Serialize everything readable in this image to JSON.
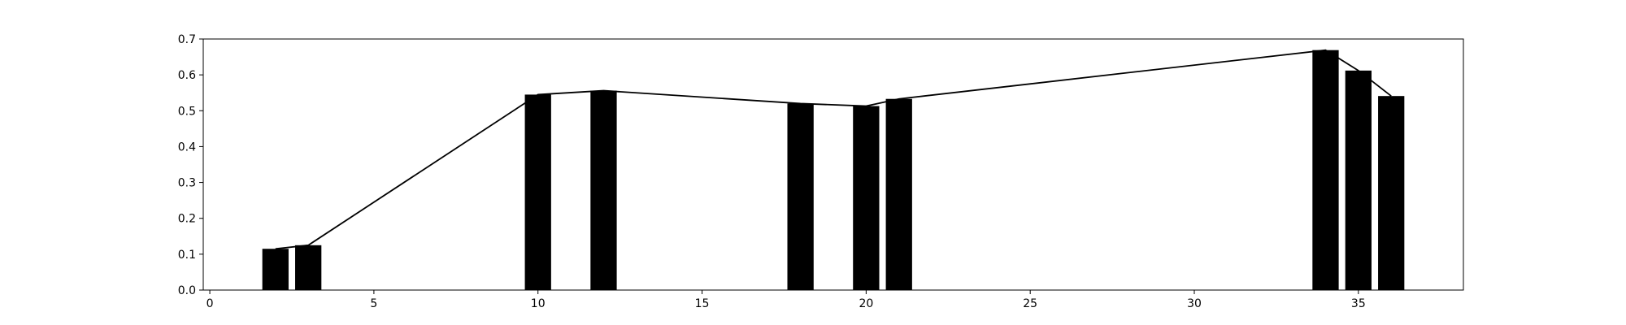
{
  "chart_data": {
    "type": "bar",
    "title": "",
    "xlabel": "",
    "ylabel": "",
    "xlim": [
      -0.2,
      38.2
    ],
    "ylim": [
      0.0,
      0.7
    ],
    "grid": false,
    "legend": "none",
    "xticks": [
      0,
      5,
      10,
      15,
      20,
      25,
      30,
      35
    ],
    "xtick_labels": [
      "0",
      "5",
      "10",
      "15",
      "20",
      "25",
      "30",
      "35"
    ],
    "yticks": [
      0.0,
      0.1,
      0.2,
      0.3,
      0.4,
      0.5,
      0.6,
      0.7
    ],
    "ytick_labels": [
      "0.0",
      "0.1",
      "0.2",
      "0.3",
      "0.4",
      "0.5",
      "0.6",
      "0.7"
    ],
    "bar_width": 0.8,
    "bar_color": "#000000",
    "line_color": "#000000",
    "points": [
      {
        "x": 2,
        "y": 0.115
      },
      {
        "x": 3,
        "y": 0.125
      },
      {
        "x": 10,
        "y": 0.545
      },
      {
        "x": 12,
        "y": 0.556
      },
      {
        "x": 18,
        "y": 0.52
      },
      {
        "x": 20,
        "y": 0.513
      },
      {
        "x": 21,
        "y": 0.533
      },
      {
        "x": 34,
        "y": 0.669
      },
      {
        "x": 35,
        "y": 0.612
      },
      {
        "x": 36,
        "y": 0.541
      }
    ]
  }
}
